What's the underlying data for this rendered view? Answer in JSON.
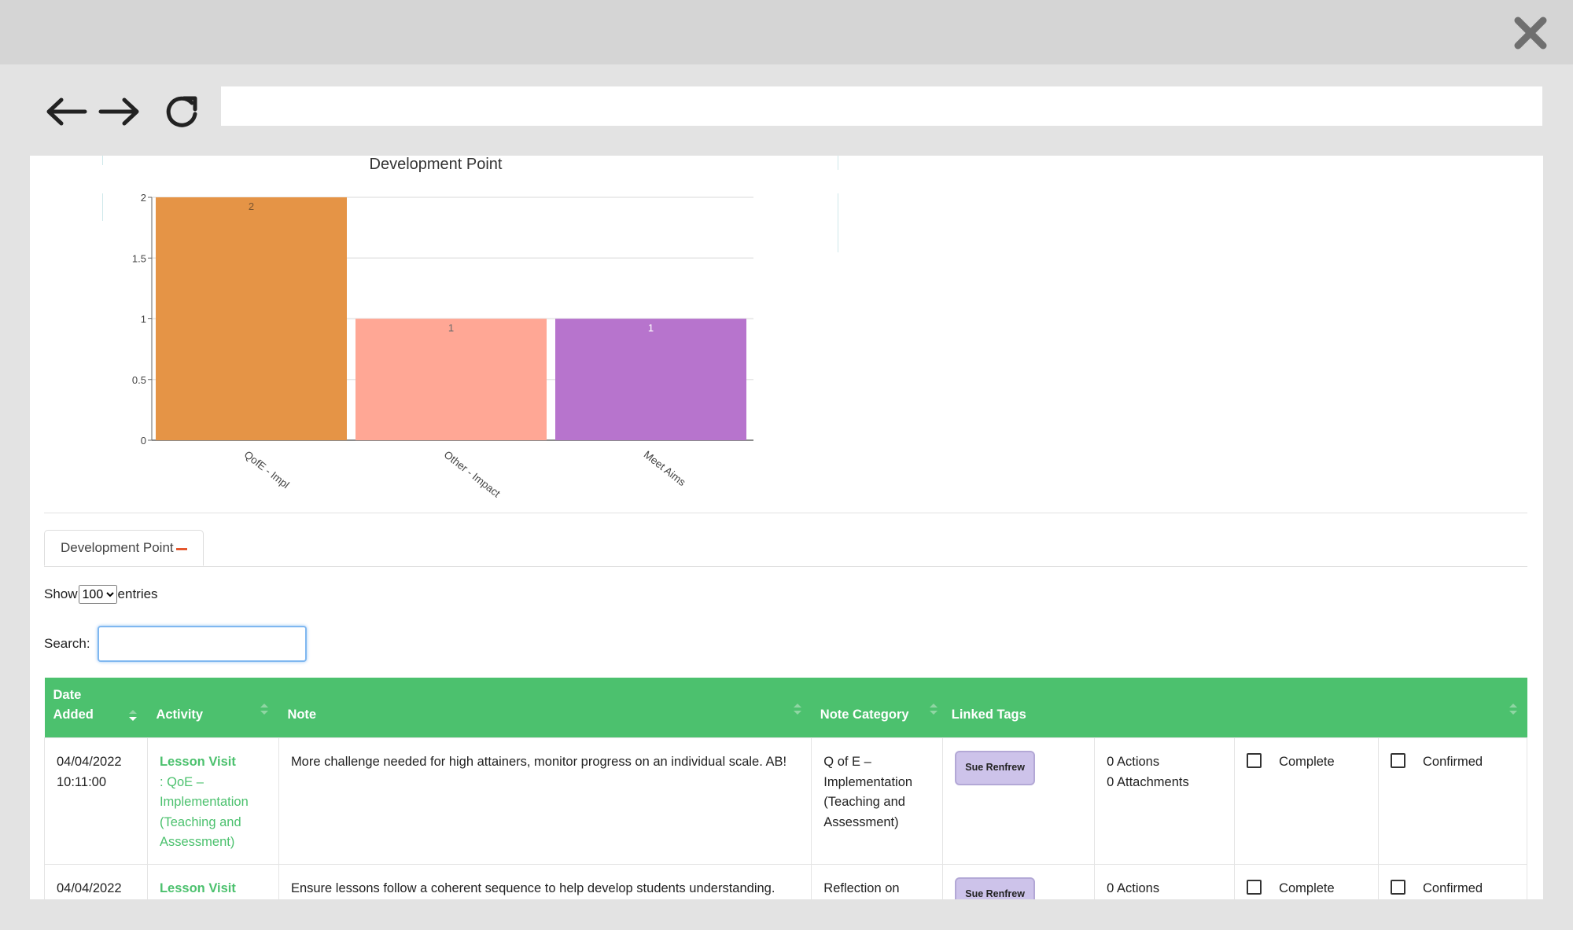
{
  "browser": {
    "url_value": "",
    "nav_icons": [
      "back-arrow-icon",
      "forward-arrow-icon",
      "reload-icon",
      "close-icon"
    ]
  },
  "chart_data": {
    "type": "bar",
    "title": "Development Point",
    "categories": [
      "QofE - Impl",
      "Other - Impact",
      "Meet Aims"
    ],
    "values": [
      2,
      1,
      1
    ],
    "data_labels": [
      "2",
      "1",
      "1"
    ],
    "colors": [
      "#e59446",
      "#ffa795",
      "#b774cd"
    ],
    "label_colors": [
      "#7a5530",
      "#6a6a6a",
      "#ffffff"
    ],
    "ylim": [
      0,
      2
    ],
    "yticks": [
      "0",
      "0.5",
      "1",
      "1.5",
      "2"
    ],
    "grid": true,
    "xlabel": "",
    "ylabel": ""
  },
  "tab": {
    "label": "Development Point"
  },
  "length_menu": {
    "show_label": "Show",
    "selected": "100",
    "entries_label": "entries"
  },
  "search": {
    "label": "Search:",
    "value": ""
  },
  "table": {
    "headers": {
      "date_added_1": "Date",
      "date_added_2": "Added",
      "activity": "Activity",
      "note": "Note",
      "note_category": "Note Category",
      "linked_tags": "Linked Tags"
    },
    "rows": [
      {
        "date": "04/04/2022",
        "time": "10:11:00",
        "activity_title": "Lesson Visit",
        "activity_sub": ": QoE – Implementation (Teaching and Assessment)",
        "note": "More challenge needed for high attainers, monitor progress on an individual scale. AB!",
        "category": "Q of E – Implementation (Teaching and Assessment)",
        "tag": "Sue Renfrew",
        "actions": "0 Actions",
        "attachments": "0 Attachments",
        "complete_label": "Complete",
        "confirmed_label": "Confirmed"
      },
      {
        "date": "04/04/2022",
        "time": "",
        "activity_title": "Lesson Visit",
        "activity_sub": "",
        "note": "Ensure lessons follow a coherent sequence to help develop students understanding.",
        "category": "Reflection on",
        "tag": "Sue Renfrew",
        "actions": "0 Actions",
        "attachments": "",
        "complete_label": "Complete",
        "confirmed_label": "Confirmed"
      }
    ]
  }
}
